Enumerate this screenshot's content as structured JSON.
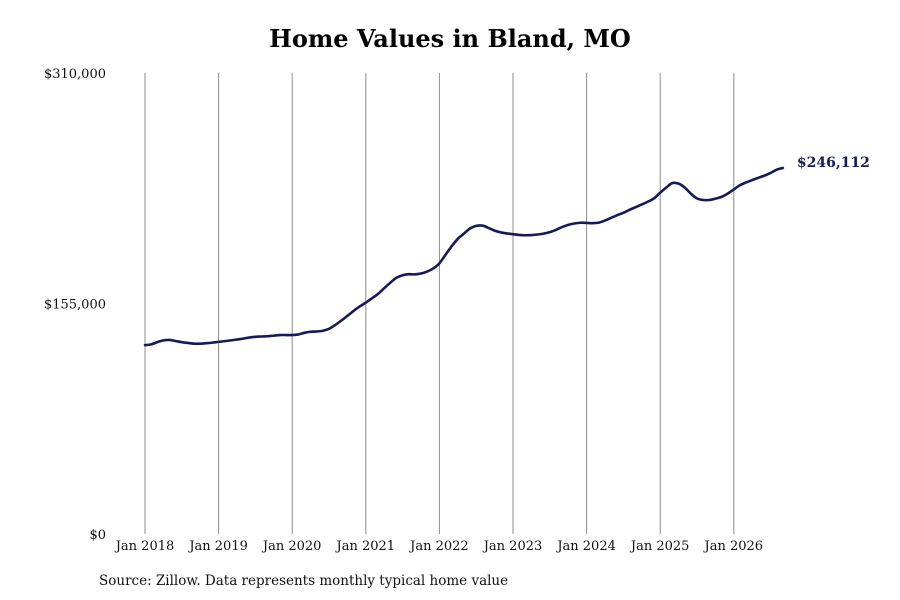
{
  "chart_data": {
    "type": "line",
    "title": "Home Values in Bland, MO",
    "source": "Source: Zillow. Data represents monthly typical home value",
    "xlabel": "",
    "ylabel": "",
    "ylim": [
      0,
      310000
    ],
    "yticks": [
      0,
      155000,
      310000
    ],
    "ytick_labels": [
      "$0",
      "$155,000",
      "$310,000"
    ],
    "xlim": [
      "2018-01",
      "2026-08"
    ],
    "xticks": [
      "2018-01",
      "2019-01",
      "2020-01",
      "2021-01",
      "2022-01",
      "2023-01",
      "2024-01",
      "2025-01",
      "2026-01"
    ],
    "xtick_labels": [
      "Jan 2018",
      "Jan 2019",
      "Jan 2020",
      "Jan 2021",
      "Jan 2022",
      "Jan 2023",
      "Jan 2024",
      "Jan 2025",
      "Jan 2026"
    ],
    "grid": "vertical",
    "line_color": "#141a5c",
    "end_label": "$246,112",
    "series": [
      {
        "name": "",
        "points": [
          [
            "2018-01",
            127000
          ],
          [
            "2018-02",
            127500
          ],
          [
            "2018-03",
            129000
          ],
          [
            "2018-04",
            130200
          ],
          [
            "2018-05",
            130500
          ],
          [
            "2018-06",
            129800
          ],
          [
            "2018-07",
            129000
          ],
          [
            "2018-08",
            128500
          ],
          [
            "2018-09",
            128000
          ],
          [
            "2018-10",
            128000
          ],
          [
            "2018-11",
            128300
          ],
          [
            "2018-12",
            128700
          ],
          [
            "2019-01",
            129200
          ],
          [
            "2019-02",
            129700
          ],
          [
            "2019-03",
            130200
          ],
          [
            "2019-04",
            130800
          ],
          [
            "2019-05",
            131400
          ],
          [
            "2019-06",
            132100
          ],
          [
            "2019-07",
            132600
          ],
          [
            "2019-08",
            132800
          ],
          [
            "2019-09",
            133000
          ],
          [
            "2019-10",
            133400
          ],
          [
            "2019-11",
            133800
          ],
          [
            "2019-12",
            133800
          ],
          [
            "2020-01",
            133800
          ],
          [
            "2020-02",
            134200
          ],
          [
            "2020-03",
            135300
          ],
          [
            "2020-04",
            136000
          ],
          [
            "2020-05",
            136200
          ],
          [
            "2020-06",
            136700
          ],
          [
            "2020-07",
            138000
          ],
          [
            "2020-08",
            140500
          ],
          [
            "2020-09",
            143500
          ],
          [
            "2020-10",
            146700
          ],
          [
            "2020-11",
            150000
          ],
          [
            "2020-12",
            153000
          ],
          [
            "2021-01",
            155600
          ],
          [
            "2021-02",
            158500
          ],
          [
            "2021-03",
            161500
          ],
          [
            "2021-04",
            165300
          ],
          [
            "2021-05",
            169000
          ],
          [
            "2021-06",
            172300
          ],
          [
            "2021-07",
            174000
          ],
          [
            "2021-08",
            174700
          ],
          [
            "2021-09",
            174600
          ],
          [
            "2021-10",
            175200
          ],
          [
            "2021-11",
            176500
          ],
          [
            "2021-12",
            178600
          ],
          [
            "2022-01",
            182000
          ],
          [
            "2022-02",
            187800
          ],
          [
            "2022-03",
            193500
          ],
          [
            "2022-04",
            198500
          ],
          [
            "2022-05",
            202000
          ],
          [
            "2022-06",
            205500
          ],
          [
            "2022-07",
            207200
          ],
          [
            "2022-08",
            207400
          ],
          [
            "2022-09",
            205800
          ],
          [
            "2022-10",
            204000
          ],
          [
            "2022-11",
            202800
          ],
          [
            "2022-12",
            202100
          ],
          [
            "2023-01",
            201600
          ],
          [
            "2023-02",
            201100
          ],
          [
            "2023-03",
            200900
          ],
          [
            "2023-04",
            201000
          ],
          [
            "2023-05",
            201400
          ],
          [
            "2023-06",
            202000
          ],
          [
            "2023-07",
            203000
          ],
          [
            "2023-08",
            204500
          ],
          [
            "2023-09",
            206400
          ],
          [
            "2023-10",
            207900
          ],
          [
            "2023-11",
            208800
          ],
          [
            "2023-12",
            209300
          ],
          [
            "2024-01",
            209200
          ],
          [
            "2024-02",
            209000
          ],
          [
            "2024-03",
            209400
          ],
          [
            "2024-04",
            210800
          ],
          [
            "2024-05",
            212600
          ],
          [
            "2024-06",
            214400
          ],
          [
            "2024-07",
            216000
          ],
          [
            "2024-08",
            218000
          ],
          [
            "2024-09",
            219800
          ],
          [
            "2024-10",
            221600
          ],
          [
            "2024-11",
            223500
          ],
          [
            "2024-12",
            225700
          ],
          [
            "2025-01",
            229500
          ],
          [
            "2025-02",
            233000
          ],
          [
            "2025-03",
            236000
          ],
          [
            "2025-04",
            235600
          ],
          [
            "2025-05",
            233000
          ],
          [
            "2025-06",
            228800
          ],
          [
            "2025-07",
            225700
          ],
          [
            "2025-08",
            224600
          ],
          [
            "2025-09",
            224600
          ],
          [
            "2025-10",
            225500
          ],
          [
            "2025-11",
            226700
          ],
          [
            "2025-12",
            228900
          ],
          [
            "2026-01",
            231700
          ],
          [
            "2026-02",
            234500
          ],
          [
            "2026-03",
            236400
          ],
          [
            "2026-04",
            238000
          ],
          [
            "2026-05",
            239500
          ],
          [
            "2026-06",
            241000
          ],
          [
            "2026-07",
            242800
          ],
          [
            "2026-08",
            245000
          ],
          [
            "2026-09",
            246112
          ]
        ]
      }
    ]
  }
}
